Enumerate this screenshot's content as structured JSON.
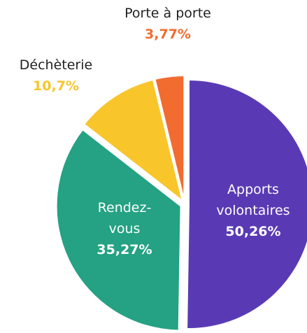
{
  "chart_data": {
    "type": "pie",
    "categories": [
      "Apports volontaires",
      "Rendez-vous",
      "Déchèterie",
      "Porte à porte"
    ],
    "values": [
      50.26,
      35.27,
      10.7,
      3.77
    ],
    "value_labels": [
      "50,26%",
      "35,27%",
      "10,7%",
      "3,77%"
    ],
    "colors": [
      "#5a3ab4",
      "#24a283",
      "#f8c52b",
      "#f26b2f"
    ]
  }
}
